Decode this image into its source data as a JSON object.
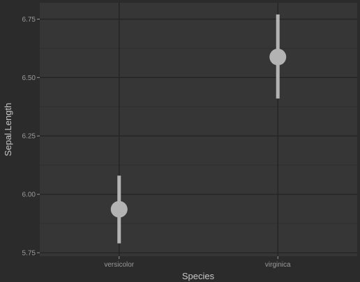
{
  "colors": {
    "background": "#2b2b2b",
    "panel": "#363636",
    "grid_major": "#232323",
    "grid_minor": "#2f2f2f",
    "tick_text": "#9a9a9a",
    "axis_title": "#c8c8c8",
    "mark": "#b3b3b3"
  },
  "chart_data": {
    "type": "scatter",
    "subtype": "pointrange",
    "title": "",
    "xlabel": "Species",
    "ylabel": "Sepal.Length",
    "categories": [
      "versicolor",
      "virginica"
    ],
    "series": [
      {
        "values": [
          5.936,
          6.588
        ],
        "lower": [
          5.79,
          6.41
        ],
        "upper": [
          6.08,
          6.77
        ]
      }
    ],
    "ylim": [
      5.735,
      6.82
    ],
    "yticks": [
      5.75,
      6.0,
      6.25,
      6.5,
      6.75
    ],
    "ytick_labels": [
      "5.75",
      "6.00",
      "6.25",
      "6.50",
      "6.75"
    ],
    "grid": true,
    "legend": "none"
  }
}
